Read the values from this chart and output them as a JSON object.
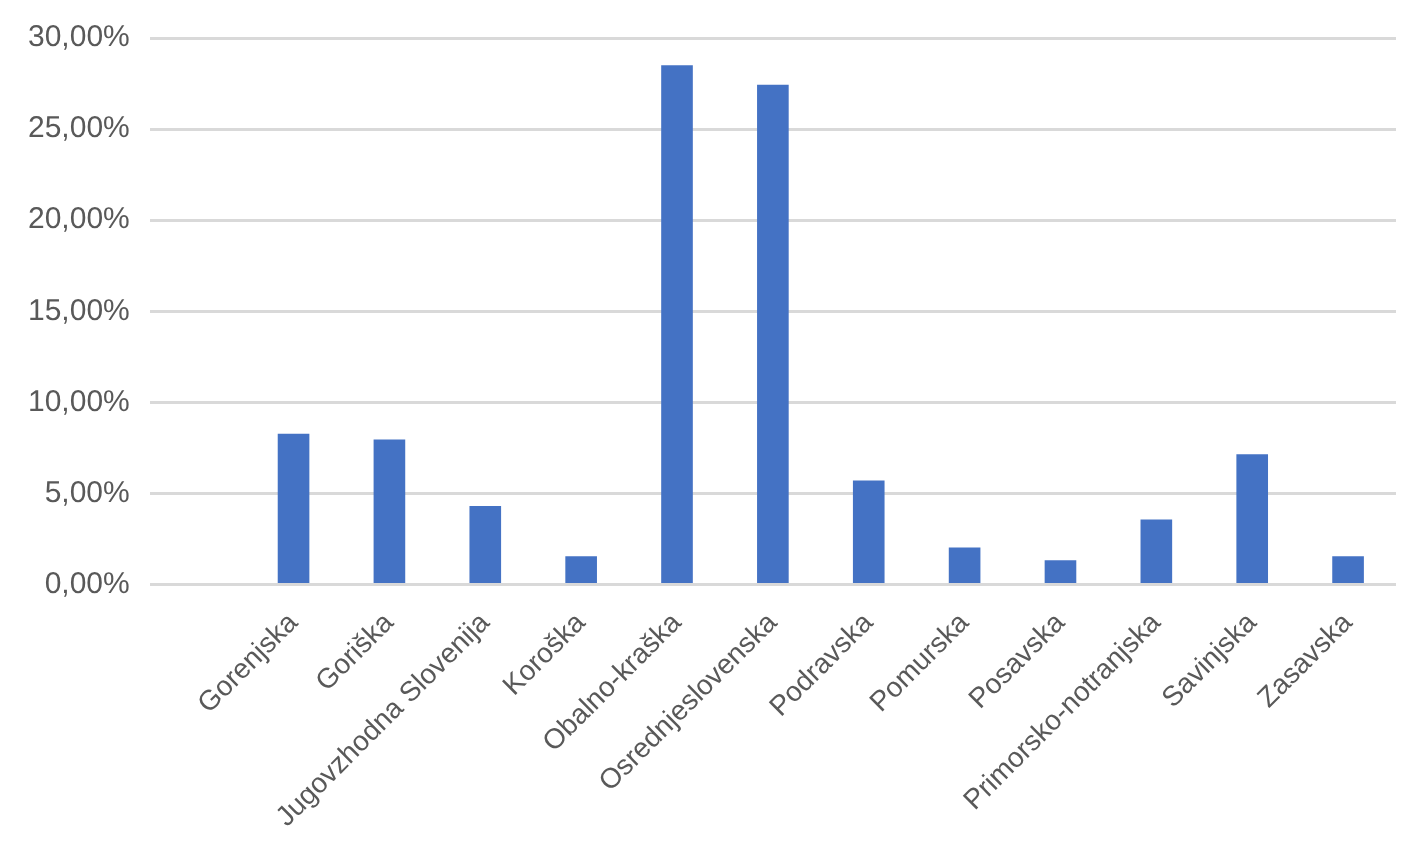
{
  "chart_data": {
    "type": "bar",
    "categories": [
      null,
      "Gorenjska",
      "Goriška",
      "Jugovzhodna Slovenija",
      "Koroška",
      "Obalno-kraška",
      "Osrednjeslovenska",
      "Podravska",
      "Pomurska",
      "Posavska",
      "Primorsko-notranjska",
      "Savinjska",
      "Zasavska"
    ],
    "values": [
      null,
      8.28,
      7.96,
      4.32,
      1.55,
      28.5,
      27.44,
      5.71,
      2.03,
      1.33,
      3.58,
      7.15,
      1.55
    ],
    "color": "#4472c4",
    "ylim": [
      0,
      30
    ],
    "yticks": [
      {
        "value": 0,
        "label": "0,00%"
      },
      {
        "value": 5,
        "label": "5,00%"
      },
      {
        "value": 10,
        "label": "10,00%"
      },
      {
        "value": 15,
        "label": "15,00%"
      },
      {
        "value": 20,
        "label": "20,00%"
      },
      {
        "value": 25,
        "label": "25,00%"
      },
      {
        "value": 30,
        "label": "30,00%"
      }
    ],
    "grid": "y",
    "legend": false
  }
}
